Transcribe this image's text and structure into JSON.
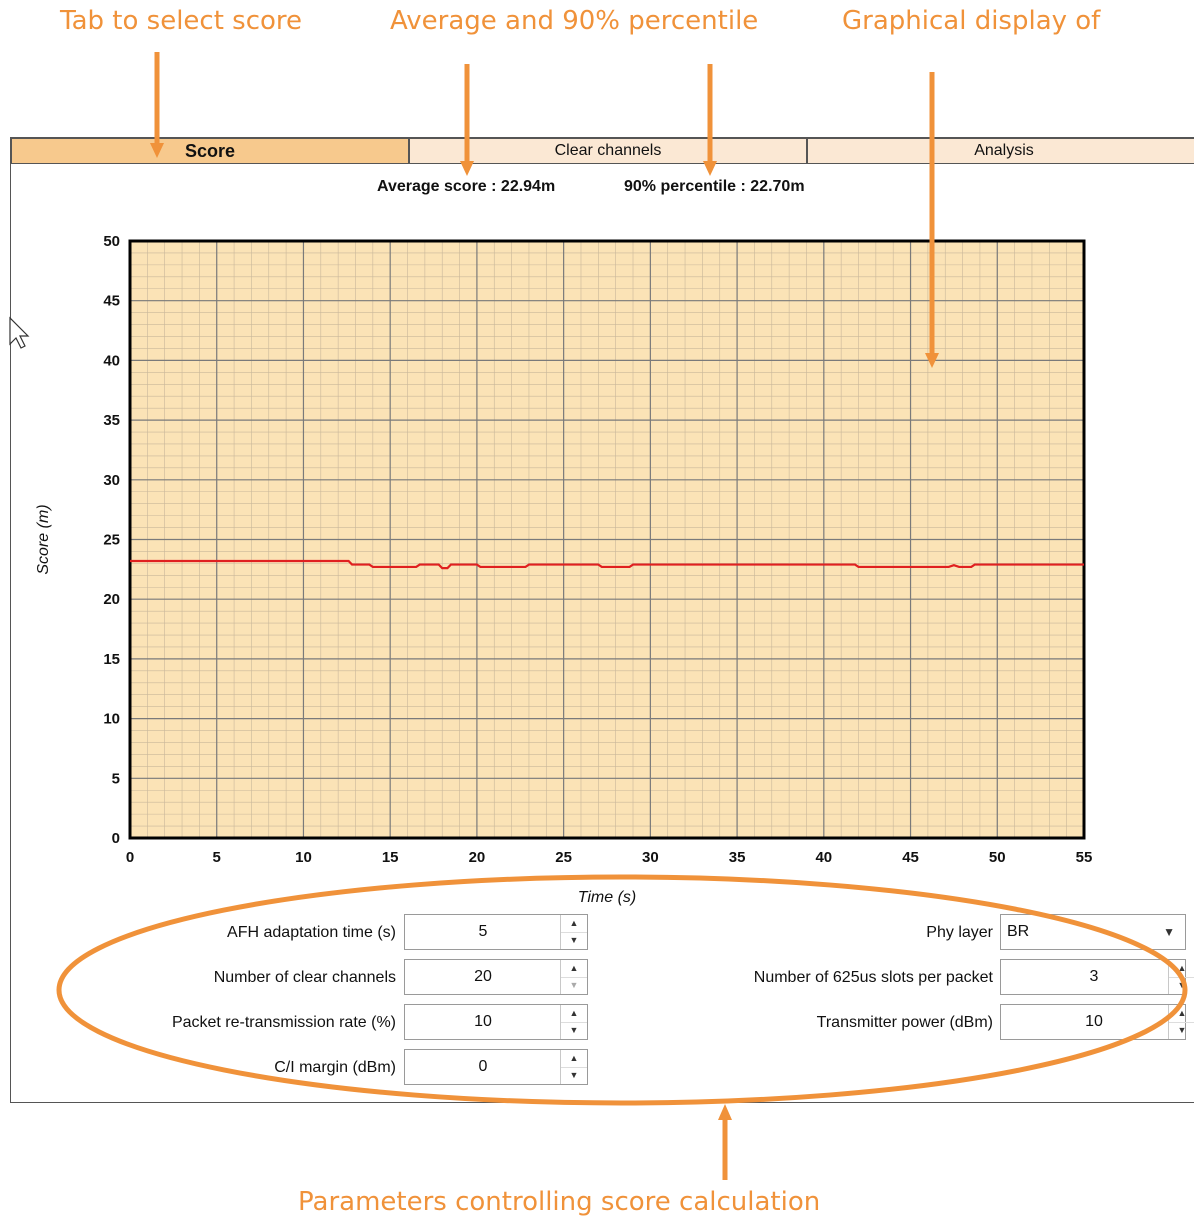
{
  "annotations": {
    "tab_select": "Tab to select score",
    "average_percentile": "Average and 90% percentile",
    "graphical_display": "Graphical display of",
    "parameters": "Parameters controlling score calculation"
  },
  "tabs": [
    {
      "label": "Score",
      "active": true
    },
    {
      "label": "Clear channels",
      "active": false
    },
    {
      "label": "Analysis",
      "active": false
    }
  ],
  "stats": {
    "average": "Average score : 22.94m",
    "percentile": "90% percentile : 22.70m"
  },
  "chart_data": {
    "type": "line",
    "xlabel": "Time (s)",
    "ylabel": "Score (m)",
    "xlim": [
      0,
      55
    ],
    "ylim": [
      0,
      50
    ],
    "x_ticks": [
      0,
      5,
      10,
      15,
      20,
      25,
      30,
      35,
      40,
      45,
      50,
      55
    ],
    "y_ticks": [
      0,
      5,
      10,
      15,
      20,
      25,
      30,
      35,
      40,
      45,
      50
    ],
    "grid": true,
    "series": [
      {
        "color": "#e02020",
        "x": [
          0,
          12.6,
          12.8,
          13.8,
          14.0,
          16.5,
          16.7,
          17.8,
          18.0,
          18.3,
          18.5,
          20.0,
          20.2,
          20.6,
          20.8,
          22.8,
          23.0,
          27.0,
          27.2,
          28.8,
          29.0,
          41.8,
          42.0,
          47.2,
          47.5,
          47.8,
          48.5,
          48.7,
          55
        ],
        "y": [
          23.2,
          23.2,
          22.9,
          22.9,
          22.7,
          22.7,
          22.9,
          22.9,
          22.6,
          22.6,
          22.9,
          22.9,
          22.7,
          22.7,
          22.7,
          22.7,
          22.9,
          22.9,
          22.7,
          22.7,
          22.9,
          22.9,
          22.7,
          22.7,
          22.85,
          22.7,
          22.7,
          22.9,
          22.9
        ]
      }
    ],
    "colors": {
      "plot_bg": "#fbe3b6",
      "grid": "#7a7a7a",
      "line": "#e02020"
    }
  },
  "params": {
    "afh_label": "AFH adaptation time (s)",
    "afh_value": "5",
    "clear_channels_label": "Number of clear channels",
    "clear_channels_value": "20",
    "retrans_label": "Packet re-transmission rate (%)",
    "retrans_value": "10",
    "ci_label": "C/I margin (dBm)",
    "ci_value": "0",
    "phy_label": "Phy layer",
    "phy_value": "BR",
    "slots_label": "Number of 625us slots per packet",
    "slots_value": "3",
    "power_label": "Transmitter power (dBm)",
    "power_value": "10"
  },
  "accent": "#f0923a"
}
